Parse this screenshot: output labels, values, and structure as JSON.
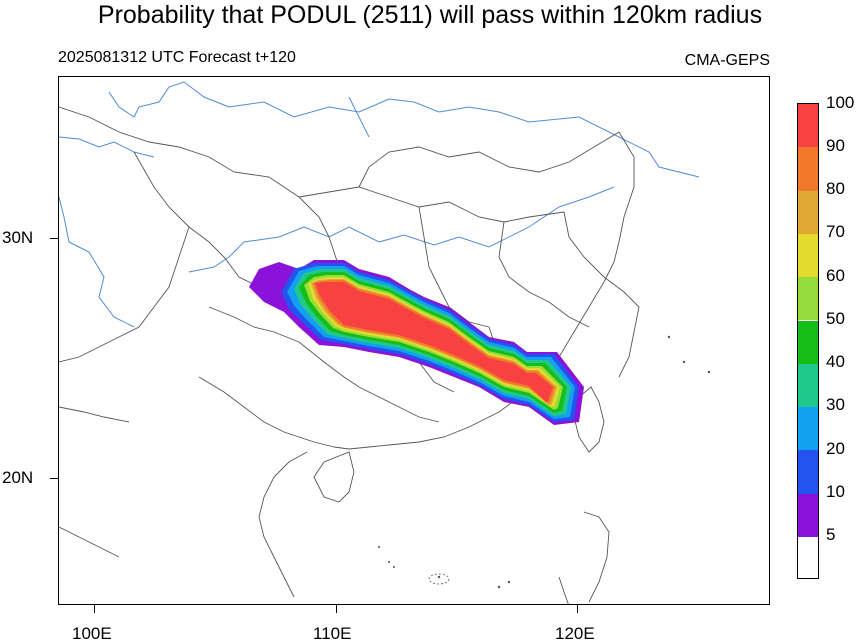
{
  "title": "Probability that PODUL (2511) will pass within 120km radius",
  "subtitle_left": "2025081312 UTC Forecast t+120",
  "subtitle_right": "CMA-GEPS",
  "lat_labels": [
    "30N",
    "20N"
  ],
  "lon_labels": [
    "100E",
    "110E",
    "120E"
  ],
  "colorbar": {
    "labels": [
      "100",
      "90",
      "80",
      "70",
      "60",
      "50",
      "40",
      "30",
      "20",
      "10",
      "5"
    ],
    "colors": [
      "#f84242",
      "#f17a2a",
      "#e1a835",
      "#e3dc2e",
      "#96dc3b",
      "#16bd16",
      "#20c98b",
      "#12a0f0",
      "#2454f0",
      "#8a12d9",
      "#ffffff"
    ]
  },
  "colors": {
    "rivers": "#4f8cd6",
    "borders": "#555555",
    "high_probability": "#f84242"
  }
}
